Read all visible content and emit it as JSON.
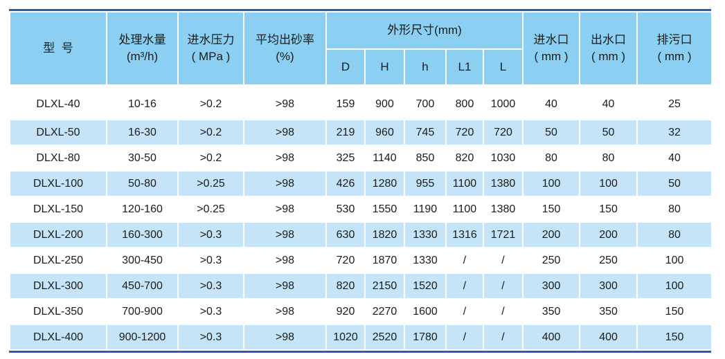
{
  "header": {
    "model": "型  号",
    "flow": "处理水量",
    "flow_unit": "(m³/h)",
    "pressure": "进水压力",
    "pressure_unit": "( MPa )",
    "sand_rate": "平均出砂率",
    "sand_rate_unit": "(%)",
    "dims": "外形尺寸(mm)",
    "dim_cols": [
      "D",
      "H",
      "h",
      "L1",
      "L"
    ],
    "inlet": "进水口",
    "inlet_unit": "( mm )",
    "outlet": "出水口",
    "outlet_unit": "( mm )",
    "drain": "排污口",
    "drain_unit": "( mm )"
  },
  "rows": [
    [
      "DLXL-40",
      "10-16",
      ">0.2",
      ">98",
      "159",
      "900",
      "700",
      "800",
      "1000",
      "40",
      "40",
      "25"
    ],
    [
      "DLXL-50",
      "16-30",
      ">0.2",
      ">98",
      "219",
      "960",
      "745",
      "720",
      "720",
      "50",
      "50",
      "32"
    ],
    [
      "DLXL-80",
      "30-50",
      ">0.2",
      ">98",
      "325",
      "1140",
      "850",
      "820",
      "1030",
      "80",
      "80",
      "40"
    ],
    [
      "DLXL-100",
      "50-80",
      ">0.25",
      ">98",
      "426",
      "1280",
      "955",
      "1100",
      "1380",
      "100",
      "100",
      "50"
    ],
    [
      "DLXL-150",
      "120-160",
      ">0.25",
      ">98",
      "530",
      "1550",
      "1190",
      "1100",
      "1380",
      "150",
      "150",
      "80"
    ],
    [
      "DLXL-200",
      "160-300",
      ">0.3",
      ">98",
      "630",
      "1820",
      "1330",
      "1316",
      "1721",
      "200",
      "200",
      "80"
    ],
    [
      "DLXL-250",
      "300-450",
      ">0.3",
      ">98",
      "720",
      "1870",
      "1330",
      "/",
      "/",
      "250",
      "250",
      "100"
    ],
    [
      "DLXL-300",
      "450-700",
      ">0.3",
      ">98",
      "820",
      "2150",
      "1520",
      "/",
      "/",
      "300",
      "300",
      "100"
    ],
    [
      "DLXL-350",
      "700-900",
      ">0.3",
      ">98",
      "920",
      "2270",
      "1600",
      "/",
      "/",
      "350",
      "350",
      "150"
    ],
    [
      "DLXL-400",
      "900-1200",
      ">0.3",
      ">98",
      "1020",
      "2520",
      "1780",
      "/",
      "/",
      "400",
      "400",
      "150"
    ]
  ],
  "colors": {
    "header_bg": "#8bd0f2",
    "alt_row_bg": "#c6e4f7",
    "rule": "#2b5daa"
  }
}
